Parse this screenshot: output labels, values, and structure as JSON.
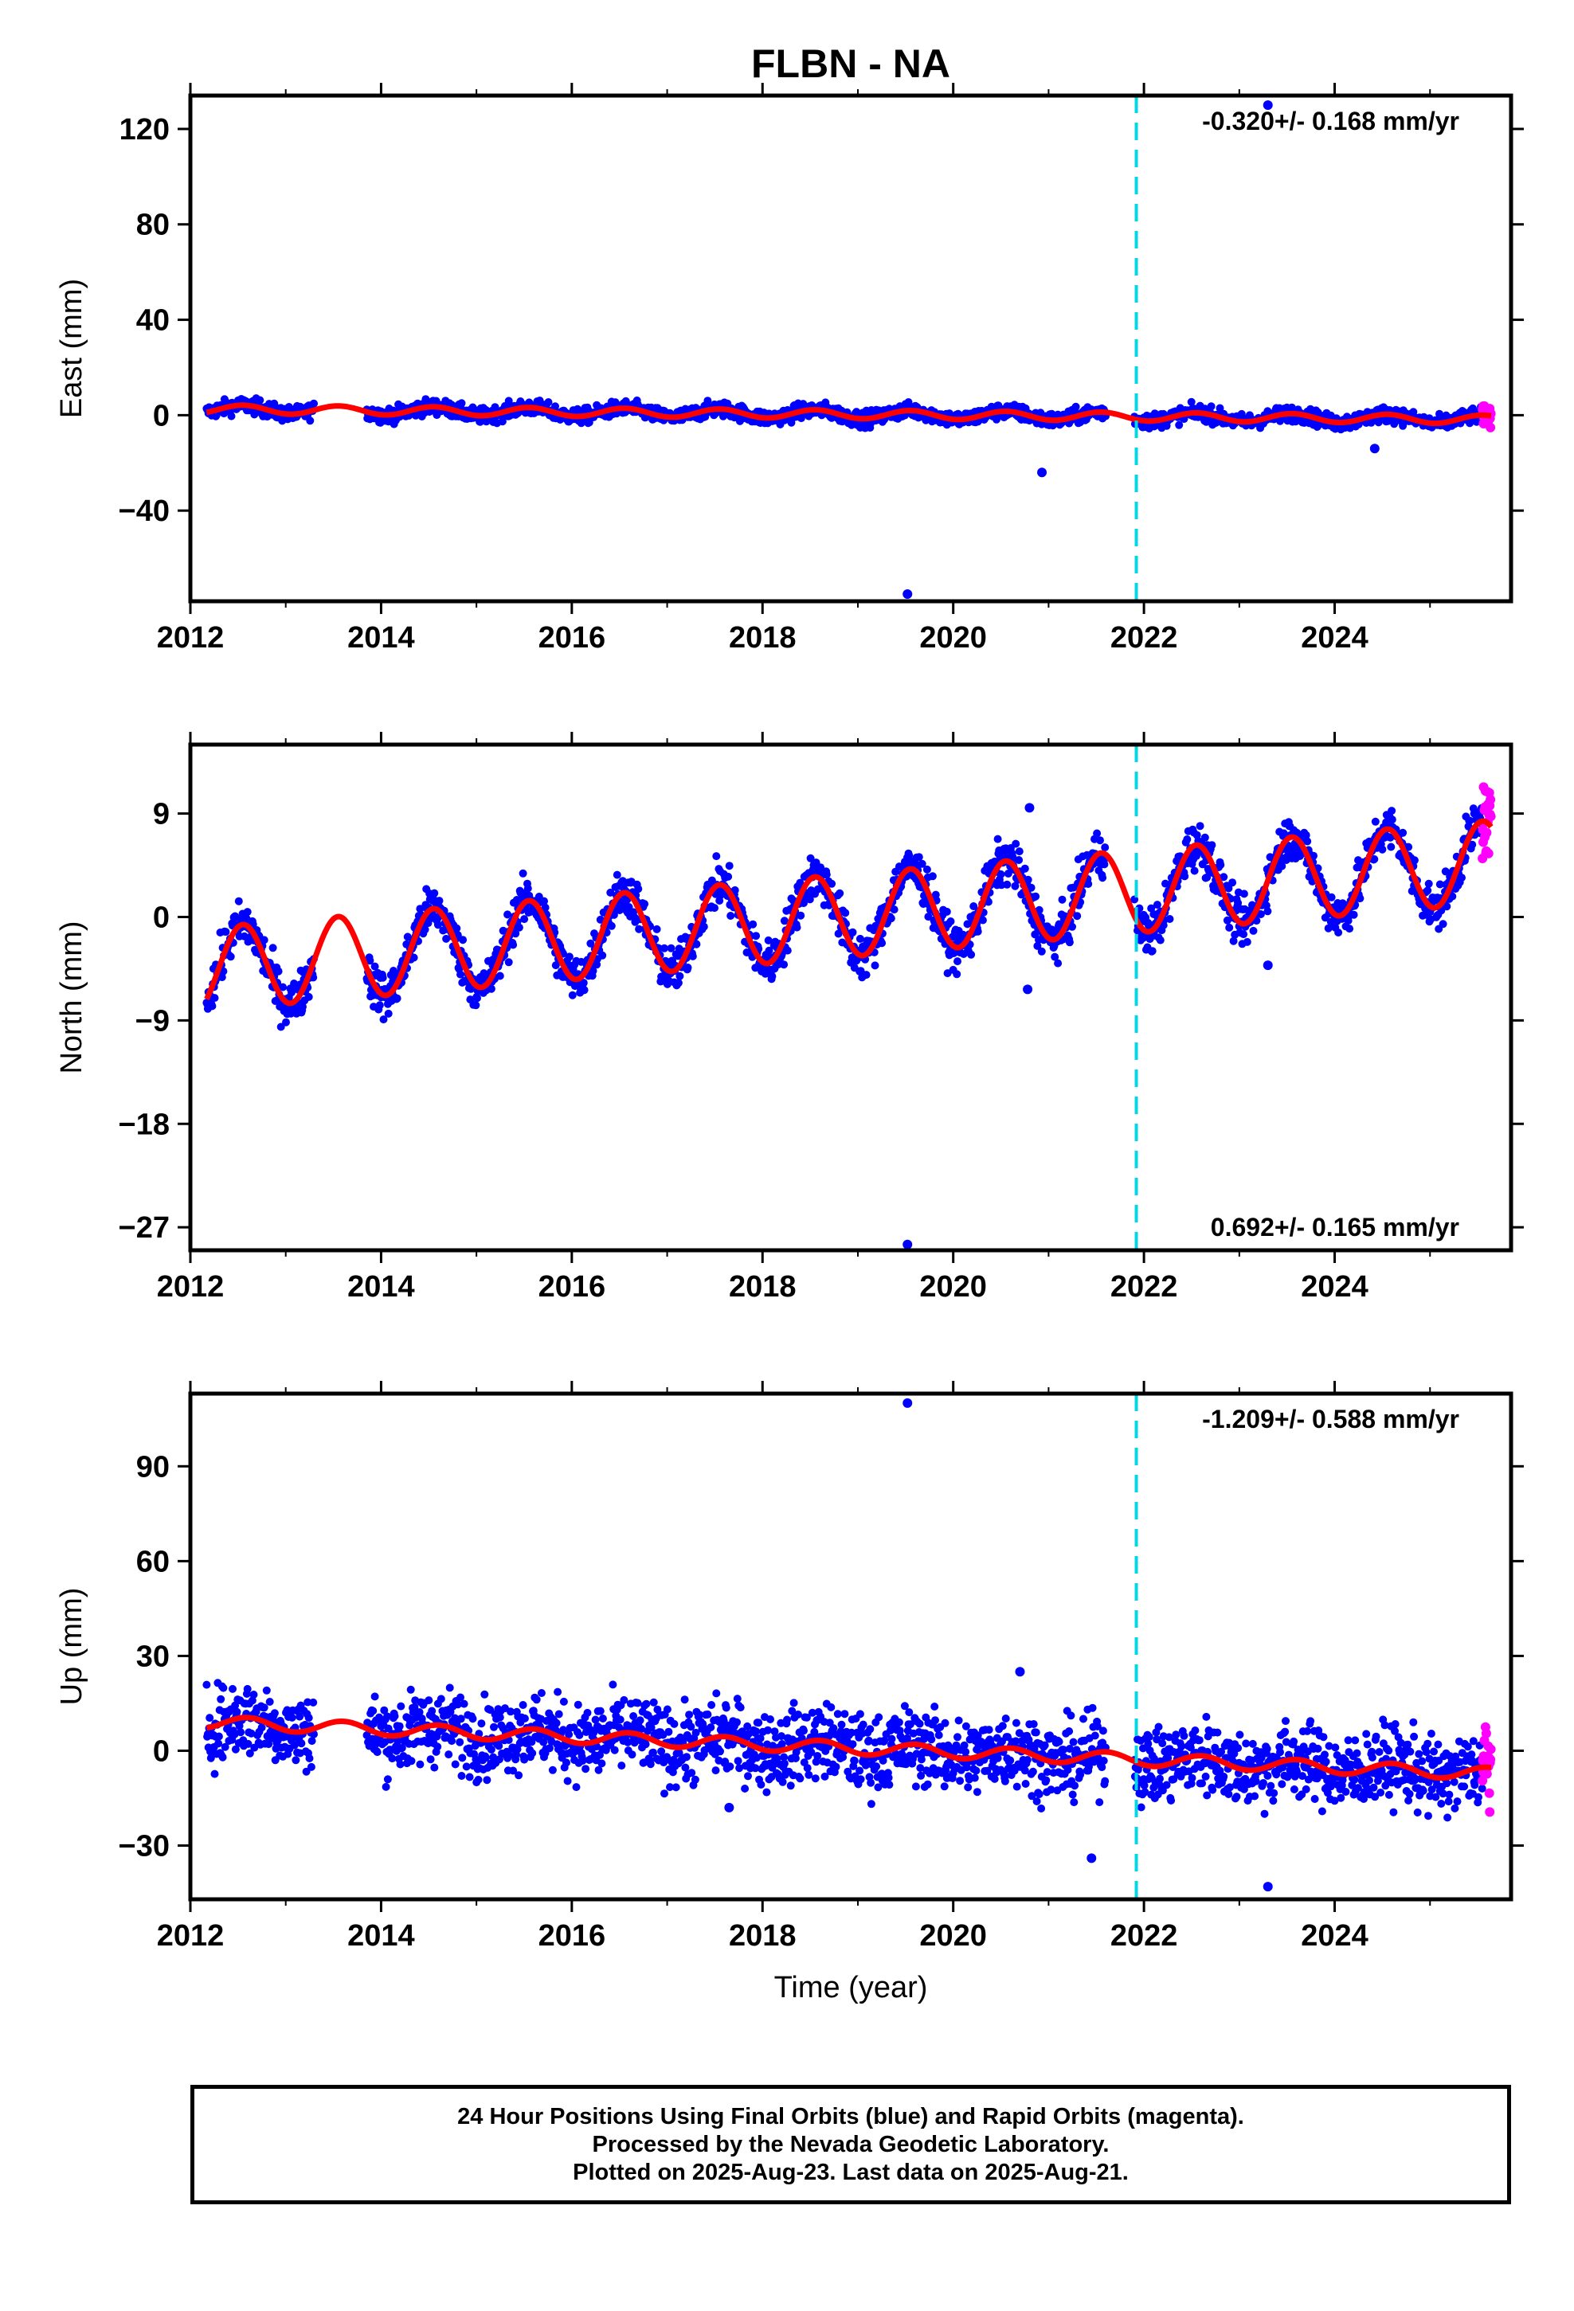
{
  "title": "FLBN - NA",
  "xlabel": "Time (year)",
  "colors": {
    "final_orbits": "#0000ff",
    "rapid_orbits": "#ff00ff",
    "model": "#ff0000",
    "equipment_change": "#00d8e6"
  },
  "footer": {
    "line1": "24 Hour Positions Using Final Orbits (blue) and Rapid Orbits (magenta).",
    "line2": "Processed by the Nevada Geodetic Laboratory.",
    "line3": "Plotted on 2025-Aug-23. Last data on 2025-Aug-21."
  },
  "chart_data": [
    {
      "type": "scatter",
      "panel": "east",
      "ylabel": "East (mm)",
      "rate_label": "-0.320+/- 0.168 mm/yr",
      "xlim": [
        2012.0,
        2025.85
      ],
      "ylim": [
        -78,
        134
      ],
      "xticks": [
        2012,
        2014,
        2016,
        2018,
        2020,
        2022,
        2024
      ],
      "xtick_labels": [
        "2012",
        "2014",
        "2016",
        "2018",
        "2020",
        "2022",
        "2024"
      ],
      "yticks": [
        120,
        80,
        40,
        0,
        -40
      ],
      "ytick_labels": [
        "120",
        "80",
        "40",
        "0",
        "−40"
      ],
      "equipment_change_x": 2021.92,
      "data_segments": [
        [
          2012.17,
          2013.3
        ],
        [
          2013.85,
          2021.6
        ],
        [
          2021.9,
          2025.55
        ]
      ],
      "rapid_segment": [
        2025.55,
        2025.64
      ],
      "trend": {
        "offset": 2.5,
        "rate": -0.32,
        "seasonal_amp": 1.8,
        "phase": 0.55,
        "noise": 1.6,
        "rapid_noise": 2.0
      },
      "outliers": [
        [
          2019.52,
          -75
        ],
        [
          2020.93,
          -24
        ],
        [
          2023.3,
          130
        ],
        [
          2024.42,
          -14
        ]
      ],
      "series": [
        {
          "name": "Final Orbits",
          "color": "#0000ff"
        },
        {
          "name": "Rapid Orbits",
          "color": "#ff00ff"
        },
        {
          "name": "Model",
          "color": "#ff0000"
        }
      ]
    },
    {
      "type": "scatter",
      "panel": "north",
      "ylabel": "North (mm)",
      "rate_label": "0.692+/- 0.165 mm/yr",
      "xlim": [
        2012.0,
        2025.85
      ],
      "ylim": [
        -29,
        15
      ],
      "xticks": [
        2012,
        2014,
        2016,
        2018,
        2020,
        2022,
        2024
      ],
      "xtick_labels": [
        "2012",
        "2014",
        "2016",
        "2018",
        "2020",
        "2022",
        "2024"
      ],
      "yticks": [
        9,
        0,
        -9,
        -18,
        -27
      ],
      "ytick_labels": [
        "9",
        "0",
        "−9",
        "−18",
        "−27"
      ],
      "equipment_change_x": 2021.92,
      "data_segments": [
        [
          2012.17,
          2013.3
        ],
        [
          2013.85,
          2021.6
        ],
        [
          2021.9,
          2025.55
        ]
      ],
      "rapid_segment": [
        2025.55,
        2025.64
      ],
      "trend": {
        "offset": -4.5,
        "rate": 0.692,
        "seasonal_amp": 3.6,
        "phase": 0.55,
        "noise": 1.0,
        "rapid_noise": 1.6
      },
      "outliers": [
        [
          2019.52,
          -28.5
        ],
        [
          2020.8,
          9.5
        ],
        [
          2023.3,
          -4.2
        ],
        [
          2020.78,
          -6.3
        ]
      ],
      "series": [
        {
          "name": "Final Orbits",
          "color": "#0000ff"
        },
        {
          "name": "Rapid Orbits",
          "color": "#ff00ff"
        },
        {
          "name": "Model",
          "color": "#ff0000"
        }
      ]
    },
    {
      "type": "scatter",
      "panel": "up",
      "ylabel": "Up (mm)",
      "rate_label": "-1.209+/- 0.588 mm/yr",
      "xlim": [
        2012.0,
        2025.85
      ],
      "ylim": [
        -47,
        113
      ],
      "xticks": [
        2012,
        2014,
        2016,
        2018,
        2020,
        2022,
        2024
      ],
      "xtick_labels": [
        "2012",
        "2014",
        "2016",
        "2018",
        "2020",
        "2022",
        "2024"
      ],
      "yticks": [
        90,
        60,
        30,
        0,
        -30
      ],
      "ytick_labels": [
        "90",
        "60",
        "30",
        "0",
        "−30"
      ],
      "equipment_change_x": 2021.92,
      "data_segments": [
        [
          2012.17,
          2013.3
        ],
        [
          2013.85,
          2021.6
        ],
        [
          2021.9,
          2025.55
        ]
      ],
      "rapid_segment": [
        2025.55,
        2025.64
      ],
      "trend": {
        "offset": 9.0,
        "rate": -1.209,
        "seasonal_amp": 2.0,
        "phase": 0.6,
        "noise": 6.0,
        "rapid_noise": 9.0
      },
      "outliers": [
        [
          2019.52,
          110
        ],
        [
          2021.45,
          -34
        ],
        [
          2023.3,
          -43
        ],
        [
          2020.7,
          25
        ],
        [
          2017.65,
          -18
        ]
      ],
      "series": [
        {
          "name": "Final Orbits",
          "color": "#0000ff"
        },
        {
          "name": "Rapid Orbits",
          "color": "#ff00ff"
        },
        {
          "name": "Model",
          "color": "#ff0000"
        }
      ]
    }
  ]
}
